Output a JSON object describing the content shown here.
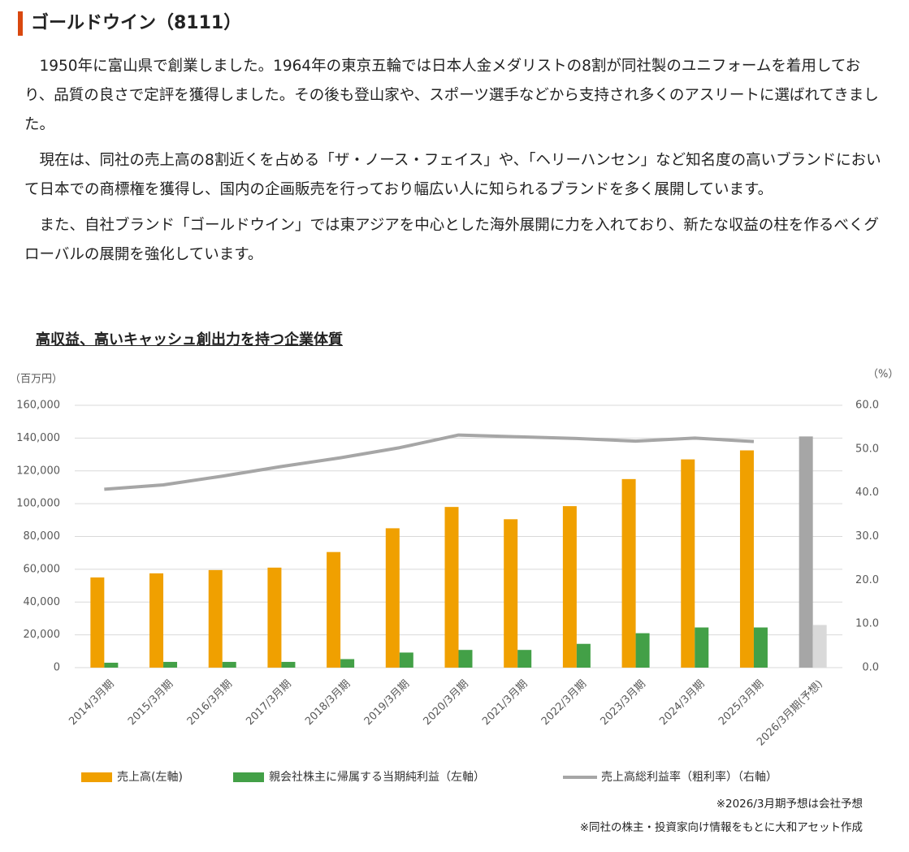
{
  "header": {
    "title": "ゴールドウイン（8111）"
  },
  "paragraphs": [
    "1950年に富山県で創業しました。1964年の東京五輪では日本人金メダリストの8割が同社製のユニフォームを着用しており、品質の良さで定評を獲得しました。その後も登山家や、スポーツ選手などから支持され多くのアスリートに選ばれてきました。",
    "現在は、同社の売上高の8割近くを占める「ザ・ノース・フェイス」や、「ヘリーハンセン」など知名度の高いブランドにおいて日本での商標権を獲得し、国内の企画販売を行っており幅広い人に知られるブランドを多く展開しています。",
    "また、自社ブランド「ゴールドウイン」では東アジアを中心とした海外展開に力を入れており、新たな収益の柱を作るべくグローバルの展開を強化しています。"
  ],
  "chart_data": {
    "type": "bar",
    "title": "高収益、高いキャッシュ創出力を持つ企業体質",
    "y_label": "（百万円）",
    "y2_label": "（%）",
    "categories": [
      "2014/3月期",
      "2015/3月期",
      "2016/3月期",
      "2017/3月期",
      "2018/3月期",
      "2019/3月期",
      "2020/3月期",
      "2021/3月期",
      "2022/3月期",
      "2023/3月期",
      "2024/3月期",
      "2025/3月期",
      "2026/3月期(予想)"
    ],
    "series": [
      {
        "name": "売上高(左軸)",
        "type": "bar",
        "color": "#f0a000",
        "colors": [
          "#f0a000",
          "#f0a000",
          "#f0a000",
          "#f0a000",
          "#f0a000",
          "#f0a000",
          "#f0a000",
          "#f0a000",
          "#f0a000",
          "#f0a000",
          "#f0a000",
          "#f0a000",
          "#a6a6a6"
        ],
        "values": [
          55000,
          57500,
          59500,
          61000,
          70500,
          85000,
          98000,
          90500,
          98500,
          115000,
          127000,
          132500,
          141000
        ]
      },
      {
        "name": "親会社株主に帰属する当期純利益（左軸）",
        "type": "bar",
        "color": "#43a047",
        "colors": [
          "#43a047",
          "#43a047",
          "#43a047",
          "#43a047",
          "#43a047",
          "#43a047",
          "#43a047",
          "#43a047",
          "#43a047",
          "#43a047",
          "#43a047",
          "#43a047",
          "#d9d9d9"
        ],
        "values": [
          3000,
          3500,
          3500,
          3500,
          5200,
          9200,
          10800,
          10800,
          14500,
          21000,
          24500,
          24500,
          26000
        ]
      },
      {
        "name": "売上高総利益率（粗利率）（右軸）",
        "type": "line",
        "axis": "y2",
        "color": "#a6a6a6",
        "values": [
          40.8,
          41.8,
          43.8,
          46.0,
          48.0,
          50.3,
          53.2,
          52.8,
          52.4,
          51.8,
          52.5,
          51.7,
          null
        ]
      }
    ],
    "ylim": [
      0,
      160000
    ],
    "yticks": [
      0,
      {
        "value": 20000,
        "label": "20,000"
      },
      {
        "value": 40000,
        "label": "40,000"
      },
      {
        "value": 60000,
        "label": "60,000"
      },
      {
        "value": 80000,
        "label": "80,000"
      },
      {
        "value": 100000,
        "label": "100,000"
      },
      {
        "value": 120000,
        "label": "120,000"
      },
      {
        "value": 140000,
        "label": "140,000"
      },
      {
        "value": 160000,
        "label": "160,000"
      }
    ],
    "y2lim": [
      0,
      60
    ],
    "y2ticks": [
      {
        "value": 0,
        "label": "0.0"
      },
      {
        "value": 10,
        "label": "10.0"
      },
      {
        "value": 20,
        "label": "20.0"
      },
      {
        "value": 30,
        "label": "30.0"
      },
      {
        "value": 40,
        "label": "40.0"
      },
      {
        "value": 50,
        "label": "50.0"
      },
      {
        "value": 60,
        "label": "60.0"
      }
    ],
    "grid": true,
    "notes": [
      "※2026/3月期予想は会社予想",
      "※同社の株主・投資家向け情報をもとに大和アセット作成"
    ]
  }
}
